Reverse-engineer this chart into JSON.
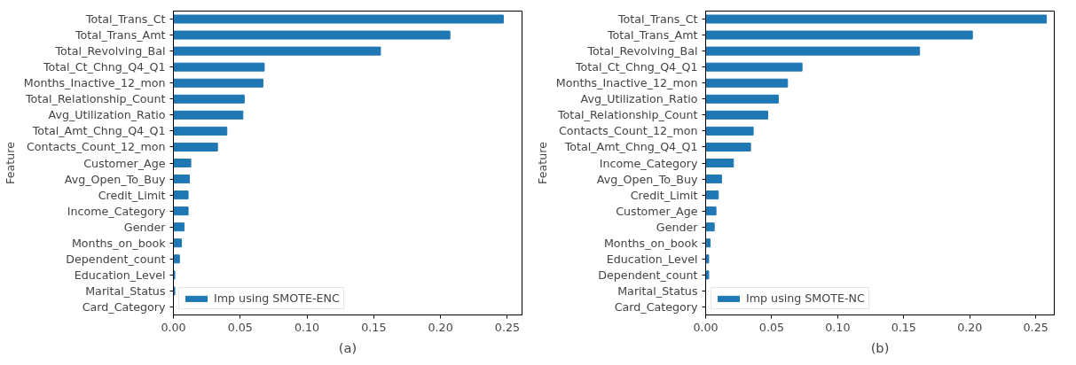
{
  "chart_data": [
    {
      "type": "bar",
      "orientation": "horizontal",
      "ylabel": "Feature",
      "annotations": [
        "(a)"
      ],
      "categories": [
        "Total_Trans_Ct",
        "Total_Trans_Amt",
        "Total_Revolving_Bal",
        "Total_Ct_Chng_Q4_Q1",
        "Months_Inactive_12_mon",
        "Total_Relationship_Count",
        "Avg_Utilization_Ratio",
        "Total_Amt_Chng_Q4_Q1",
        "Contacts_Count_12_mon",
        "Customer_Age",
        "Avg_Open_To_Buy",
        "Credit_Limit",
        "Income_Category",
        "Gender",
        "Months_on_book",
        "Dependent_count",
        "Education_Level",
        "Marital_Status",
        "Card_Category"
      ],
      "series": [
        {
          "name": "Imp using SMOTE-ENC",
          "color": "#1f77b4",
          "values": [
            0.247,
            0.207,
            0.155,
            0.068,
            0.067,
            0.053,
            0.052,
            0.04,
            0.033,
            0.013,
            0.012,
            0.011,
            0.011,
            0.008,
            0.006,
            0.0045,
            0.001,
            0.001,
            0
          ]
        }
      ],
      "xlim": [
        0,
        0.261
      ],
      "xticks": [
        {
          "value": 0,
          "label": "0.00"
        },
        0.05,
        {
          "value": 0.1,
          "label": "0.10"
        },
        0.15,
        {
          "value": 0.2,
          "label": "0.20"
        },
        0.25
      ],
      "legend": "bottom left",
      "grid": false
    },
    {
      "type": "bar",
      "orientation": "horizontal",
      "ylabel": "Feature",
      "annotations": [
        "(b)"
      ],
      "categories": [
        "Total_Trans_Ct",
        "Total_Trans_Amt",
        "Total_Revolving_Bal",
        "Total_Ct_Chng_Q4_Q1",
        "Months_Inactive_12_mon",
        "Avg_Utilization_Ratio",
        "Total_Relationship_Count",
        "Contacts_Count_12_mon",
        "Total_Amt_Chng_Q4_Q1",
        "Income_Category",
        "Avg_Open_To_Buy",
        "Credit_Limit",
        "Customer_Age",
        "Gender",
        "Months_on_book",
        "Education_Level",
        "Dependent_count",
        "Marital_Status",
        "Card_Category"
      ],
      "series": [
        {
          "name": "Imp using SMOTE-NC",
          "color": "#1f77b4",
          "values": [
            0.258,
            0.202,
            0.162,
            0.073,
            0.062,
            0.055,
            0.047,
            0.036,
            0.034,
            0.021,
            0.012,
            0.0096,
            0.0078,
            0.0065,
            0.0034,
            0.0023,
            0.0023,
            0,
            0
          ]
        }
      ],
      "xlim": [
        0,
        0.264
      ],
      "xticks": [
        {
          "value": 0,
          "label": "0.00"
        },
        0.05,
        {
          "value": 0.1,
          "label": "0.10"
        },
        0.15,
        {
          "value": 0.2,
          "label": "0.20"
        },
        0.25
      ],
      "legend": "bottom left",
      "grid": false
    }
  ]
}
